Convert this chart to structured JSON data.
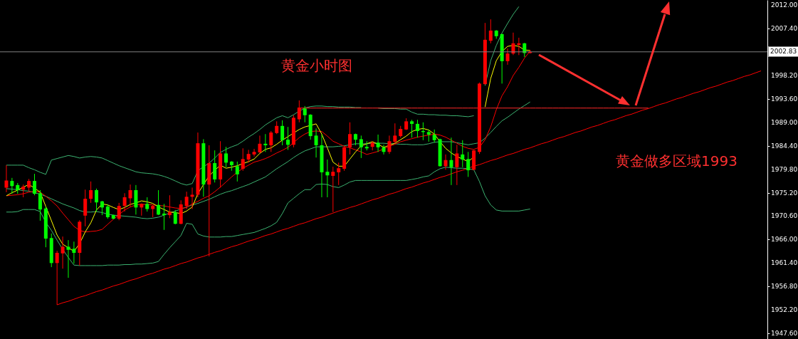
{
  "chart_data": {
    "type": "candlestick",
    "categories": [
      null,
      null,
      null,
      null,
      null,
      null,
      null,
      null,
      null,
      null,
      null,
      null,
      null,
      null,
      null,
      null,
      null,
      null,
      null,
      null,
      null,
      null,
      null,
      null,
      null,
      null,
      null,
      null,
      null,
      null,
      null,
      null,
      null,
      null,
      null,
      null,
      null,
      null,
      null,
      null,
      null,
      null,
      null,
      null,
      null,
      null,
      null,
      null,
      null,
      null,
      null,
      null,
      null,
      null,
      null,
      null,
      null,
      null,
      null,
      null,
      null,
      null,
      null,
      null,
      null,
      null,
      null,
      null,
      null,
      null,
      null,
      null,
      null,
      null,
      null,
      null,
      null,
      null,
      null,
      null,
      null,
      null,
      null,
      null,
      null,
      null,
      null,
      null,
      null,
      null,
      null,
      null,
      null,
      null,
      null,
      null,
      null,
      null,
      null,
      null,
      null,
      null,
      null,
      null,
      null,
      null,
      null,
      null,
      null,
      null,
      null,
      null,
      null,
      null,
      null,
      null,
      null,
      null,
      null,
      null,
      null,
      null,
      null,
      null,
      null,
      null,
      null,
      null,
      null,
      null,
      null,
      null,
      null,
      null,
      null
    ],
    "ohlc": [
      [
        1976.2,
        1980.6,
        1975.3,
        1977.6
      ],
      [
        1977.5,
        1978.1,
        1975.0,
        1976.5
      ],
      [
        1976.7,
        1977.1,
        1975.0,
        1975.7
      ],
      [
        1975.8,
        1976.8,
        1974.3,
        1976.4
      ],
      [
        1976.2,
        1977.9,
        1975.5,
        1977.5
      ],
      [
        1977.5,
        1978.9,
        1974.7,
        1975.0
      ],
      [
        1975.1,
        1975.7,
        1969.7,
        1971.9
      ],
      [
        1972.1,
        1972.5,
        1964.5,
        1966.2
      ],
      [
        1966.3,
        1967.2,
        1960.6,
        1961.4
      ],
      [
        1961.4,
        1963.8,
        1953.2,
        1963.4
      ],
      [
        1963.3,
        1966.6,
        1960.3,
        1964.6
      ],
      [
        1964.6,
        1965.9,
        1958.5,
        1964.0
      ],
      [
        1964.2,
        1965.6,
        1961.3,
        1963.4
      ],
      [
        1963.4,
        1969.8,
        1960.9,
        1969.5
      ],
      [
        1970.7,
        1975.8,
        1968.6,
        1974.0
      ],
      [
        1974.0,
        1977.4,
        1973.2,
        1975.7
      ],
      [
        1975.7,
        1976.0,
        1971.5,
        1973.3
      ],
      [
        1973.5,
        1973.6,
        1970.8,
        1972.3
      ],
      [
        1972.5,
        1972.9,
        1970.1,
        1970.4
      ],
      [
        1970.8,
        1970.9,
        1970.0,
        1970.1
      ],
      [
        1970.1,
        1973.2,
        1969.8,
        1972.6
      ],
      [
        1972.6,
        1975.1,
        1971.5,
        1974.3
      ],
      [
        1974.1,
        1976.8,
        1972.5,
        1975.7
      ],
      [
        1975.7,
        1976.7,
        1970.9,
        1972.3
      ],
      [
        1972.3,
        1973.1,
        1970.7,
        1973.0
      ],
      [
        1973.0,
        1974.3,
        1971.5,
        1972.0
      ],
      [
        1972.0,
        1972.8,
        1970.4,
        1972.6
      ],
      [
        1972.8,
        1975.7,
        1970.8,
        1970.9
      ],
      [
        1971.1,
        1973.0,
        1967.9,
        1970.8
      ],
      [
        1970.8,
        1974.7,
        1970.2,
        1971.4
      ],
      [
        1971.4,
        1971.8,
        1969.0,
        1969.1
      ],
      [
        1969.1,
        1973.7,
        1969.0,
        1972.9
      ],
      [
        1972.6,
        1975.4,
        1972.0,
        1974.4
      ],
      [
        1974.4,
        1976.2,
        1972.0,
        1974.8
      ],
      [
        1974.8,
        1987.0,
        1974.3,
        1984.9
      ],
      [
        1984.9,
        1985.7,
        1974.4,
        1976.8
      ],
      [
        1976.8,
        1984.5,
        1962.7,
        1981.0
      ],
      [
        1981.0,
        1983.5,
        1977.2,
        1977.8
      ],
      [
        1977.8,
        1985.3,
        1976.2,
        1982.9
      ],
      [
        1982.9,
        1984.2,
        1980.2,
        1981.1
      ],
      [
        1981.3,
        1981.4,
        1979.5,
        1980.6
      ],
      [
        1980.4,
        1981.3,
        1977.4,
        1978.8
      ],
      [
        1979.9,
        1983.9,
        1979.5,
        1981.8
      ],
      [
        1981.7,
        1983.6,
        1981.1,
        1982.8
      ],
      [
        1982.7,
        1983.8,
        1982.3,
        1983.2
      ],
      [
        1983.1,
        1986.4,
        1983.0,
        1984.8
      ],
      [
        1984.8,
        1986.7,
        1983.2,
        1984.5
      ],
      [
        1984.5,
        1987.3,
        1983.2,
        1987.0
      ],
      [
        1986.9,
        1989.2,
        1986.7,
        1988.3
      ],
      [
        1988.3,
        1989.4,
        1984.5,
        1985.5
      ],
      [
        1985.6,
        1988.1,
        1983.6,
        1984.6
      ],
      [
        1984.6,
        1990.4,
        1984.1,
        1989.9
      ],
      [
        1989.6,
        1993.3,
        1989.0,
        1991.9
      ],
      [
        1991.7,
        1992.2,
        1989.0,
        1990.4
      ],
      [
        1990.5,
        1990.6,
        1985.6,
        1986.3
      ],
      [
        1986.4,
        1987.8,
        1982.1,
        1984.5
      ],
      [
        1984.5,
        1986.6,
        1974.3,
        1979.2
      ],
      [
        1979.3,
        1981.7,
        1974.3,
        1978.6
      ],
      [
        1978.5,
        1980.3,
        1971.4,
        1979.3
      ],
      [
        1979.2,
        1981.1,
        1976.7,
        1980.0
      ],
      [
        1979.9,
        1984.3,
        1979.5,
        1984.1
      ],
      [
        1984.1,
        1989.0,
        1982.7,
        1986.7
      ],
      [
        1986.7,
        1986.8,
        1984.5,
        1985.6
      ],
      [
        1985.7,
        1986.4,
        1982.0,
        1984.1
      ],
      [
        1984.2,
        1985.3,
        1983.5,
        1983.9
      ],
      [
        1984.2,
        1985.3,
        1983.5,
        1985.0
      ],
      [
        1985.0,
        1986.6,
        1983.2,
        1984.1
      ],
      [
        1984.1,
        1984.6,
        1982.7,
        1983.2
      ],
      [
        1983.2,
        1986.4,
        1982.8,
        1985.3
      ],
      [
        1985.2,
        1988.8,
        1984.8,
        1986.4
      ],
      [
        1986.3,
        1988.3,
        1986.0,
        1987.7
      ],
      [
        1987.6,
        1989.8,
        1987.5,
        1989.2
      ],
      [
        1989.2,
        1989.5,
        1986.0,
        1988.7
      ],
      [
        1988.7,
        1989.5,
        1986.0,
        1987.3
      ],
      [
        1987.3,
        1989.0,
        1985.5,
        1987.1
      ],
      [
        1987.1,
        1987.6,
        1985.2,
        1986.6
      ],
      [
        1986.6,
        1987.6,
        1985.0,
        1985.5
      ],
      [
        1985.7,
        1985.8,
        1980.3,
        1980.4
      ],
      [
        1980.4,
        1982.7,
        1979.7,
        1981.6
      ],
      [
        1981.6,
        1986.0,
        1976.7,
        1980.2
      ],
      [
        1980.2,
        1984.6,
        1976.7,
        1982.9
      ],
      [
        1982.7,
        1985.5,
        1980.2,
        1981.7
      ],
      [
        1981.8,
        1983.2,
        1978.3,
        1979.6
      ],
      [
        1979.7,
        1983.6,
        1979.6,
        1983.5
      ],
      [
        1983.2,
        1996.8,
        1982.8,
        1996.6
      ],
      [
        1996.5,
        2008.5,
        1996.4,
        2005.2
      ],
      [
        2005.0,
        2009.2,
        2004.5,
        2007.0
      ],
      [
        2007.0,
        2007.1,
        2005.4,
        2005.9
      ],
      [
        2006.3,
        2006.4,
        1996.6,
        2001.0
      ],
      [
        2001.0,
        2003.5,
        2000.3,
        2002.5
      ],
      [
        2002.5,
        2006.6,
        2002.2,
        2004.5
      ],
      [
        2004.2,
        2005.6,
        2002.2,
        2004.5
      ],
      [
        2004.5,
        2004.6,
        2001.8,
        2002.6
      ],
      [
        2002.6,
        2003.2,
        2002.5,
        2002.8
      ],
      null,
      null,
      null,
      null,
      null,
      null,
      null,
      null,
      null,
      null,
      null,
      null,
      null,
      null,
      null,
      null,
      null,
      null,
      null,
      null,
      null,
      null,
      null,
      null,
      null,
      null,
      null,
      null,
      null,
      null,
      null,
      null,
      null,
      null,
      null,
      null,
      null,
      null,
      null,
      null,
      null
    ],
    "colors": [
      "#ff0000",
      "#00ff00",
      "#00ff00",
      "#ff0000",
      "#ff0000",
      "#00ff00",
      "#00ff00",
      "#00ff00",
      "#00ff00",
      "#ff0000",
      "#ff0000",
      "#00ff00",
      "#00ff00",
      "#ff0000",
      "#ff0000",
      "#ff0000",
      "#00ff00",
      "#00ff00",
      "#00ff00",
      "#00ff00",
      "#ff0000",
      "#ff0000",
      "#ff0000",
      "#00ff00",
      "#ff0000",
      "#00ff00",
      "#ff0000",
      "#00ff00",
      "#00ff00",
      "#ff0000",
      "#00ff00",
      "#ff0000",
      "#ff0000",
      "#ff0000",
      "#ff0000",
      "#00ff00",
      "#ff0000",
      "#00ff00",
      "#ff0000",
      "#00ff00",
      "#00ff00",
      "#00ff00",
      "#ff0000",
      "#ff0000",
      "#ff0000",
      "#ff0000",
      "#00ff00",
      "#ff0000",
      "#ff0000",
      "#00ff00",
      "#00ff00",
      "#ff0000",
      "#ff0000",
      "#00ff00",
      "#00ff00",
      "#00ff00",
      "#00ff00",
      "#00ff00",
      "#ff0000",
      "#ff0000",
      "#ff0000",
      "#ff0000",
      "#00ff00",
      "#00ff00",
      "#00ff00",
      "#ff0000",
      "#00ff00",
      "#00ff00",
      "#ff0000",
      "#ff0000",
      "#ff0000",
      "#ff0000",
      "#00ff00",
      "#00ff00",
      "#00ff00",
      "#00ff00",
      "#00ff00",
      "#00ff00",
      "#ff0000",
      "#00ff00",
      "#ff0000",
      "#00ff00",
      "#00ff00",
      "#ff0000",
      "#ff0000",
      "#ff0000",
      "#ff0000",
      "#00ff00",
      "#00ff00",
      "#ff0000",
      "#ff0000",
      "#ff0000",
      "#00ff00",
      "#ff0000",
      null,
      null,
      null,
      null,
      null,
      null,
      null,
      null,
      null,
      null,
      null,
      null,
      null,
      null,
      null,
      null,
      null,
      null,
      null,
      null,
      null,
      null,
      null,
      null,
      null,
      null,
      null,
      null,
      null,
      null,
      null,
      null,
      null,
      null,
      null,
      null,
      null,
      null,
      null,
      null,
      null
    ],
    "series": [
      {
        "type": "line",
        "color": "#3cb371",
        "values": [
          1980.6,
          1980.6,
          1980.6,
          1980.6,
          1980.1,
          1979.7,
          1979.2,
          1978.8,
          1981.6,
          1981.9,
          1982.2,
          1982.5,
          1982.3,
          1982.0,
          1982.2,
          1982.3,
          1982.2,
          1982.0,
          1981.5,
          1981.0,
          1980.5,
          1980.1,
          1979.7,
          1979.3,
          1979.1,
          1979.0,
          1978.9,
          1978.7,
          1978.4,
          1978.0,
          1977.5,
          1977.0,
          1976.7,
          1977.0,
          1979.5,
          1980.3,
          1981.0,
          1982.0,
          1983.1,
          1983.7,
          1984.2,
          1984.6,
          1985.3,
          1986.1,
          1986.8,
          1987.6,
          1988.5,
          1989.2,
          1989.9,
          1990.3,
          1989.9,
          1990.5,
          1991.2,
          1991.8,
          1992.1,
          1992.2,
          1992.2,
          1992.1,
          1992.1,
          1992.0,
          1992.0,
          1992.0,
          1991.9,
          1991.9,
          null,
          null,
          1991.8,
          1991.7,
          1991.7,
          1991.7,
          1991.6,
          1991.6,
          1991.0,
          1990.6,
          1990.6,
          1990.5,
          1990.5,
          1990.4,
          1990.4,
          1990.3,
          1990.3,
          1990.2,
          1990.1,
          1990.3,
          null,
          1996.2,
          2001.1,
          2004.1,
          2006.5,
          2008.4,
          2010.2,
          2011.7,
          null,
          null,
          null,
          null,
          null,
          null,
          null,
          null,
          null,
          null,
          null,
          null,
          null,
          null,
          null,
          null,
          null,
          null,
          null,
          null,
          null,
          null,
          null,
          null,
          null,
          null,
          null,
          null,
          null,
          null,
          null,
          null,
          null,
          null,
          null,
          null,
          null,
          null,
          null,
          null,
          null,
          null,
          null
        ]
      },
      {
        "type": "line",
        "color": "#3cb371",
        "values": [
          1976.0,
          1975.9,
          1975.8,
          1975.6,
          1975.5,
          1975.2,
          1974.9,
          1974.5,
          1974.0,
          1973.5,
          1973.0,
          1972.6,
          1972.2,
          1971.7,
          1971.4,
          1971.4,
          1971.5,
          1971.3,
          1971.0,
          1970.8,
          1970.7,
          1970.6,
          1970.5,
          1970.4,
          1970.2,
          1970.1,
          1970.2,
          1970.4,
          1970.8,
          1971.2,
          1971.6,
          1972.0,
          1972.4,
          1972.8,
          1973.1,
          1973.5,
          1973.9,
          1974.4,
          1974.9,
          1975.3,
          1975.6,
          1976.0,
          1976.4,
          1976.8,
          1977.3,
          1977.8,
          1978.3,
          1979.1,
          1979.9,
          1980.6,
          1981.3,
          1982.1,
          1982.8,
          1983.4,
          1983.8,
          1984.2,
          1984.2,
          1984.2,
          1984.2,
          1984.3,
          1984.4,
          1984.6,
          1984.8,
          1984.8,
          1984.8,
          1984.9,
          1984.9,
          1984.9,
          1984.8,
          1984.8,
          1984.7,
          1984.7,
          1984.6,
          1984.6,
          1984.6,
          1984.8,
          1985.1,
          1985.2,
          1985.2,
          1985.2,
          1985.0,
          1984.8,
          1984.6,
          1984.8,
          1985.0,
          1985.9,
          1987.0,
          1988.2,
          1989.3,
          1990.0,
          1990.8,
          1991.6,
          1992.3,
          1993.0,
          null,
          null,
          null,
          null,
          null,
          null,
          null,
          null,
          null,
          null,
          null,
          null,
          null,
          null,
          null,
          null,
          null,
          null,
          null,
          null,
          null,
          null,
          null,
          null,
          null,
          null,
          null,
          null,
          null,
          null,
          null,
          null,
          null,
          null,
          null,
          null,
          null,
          null,
          null,
          null,
          null
        ]
      },
      {
        "type": "line",
        "color": "#3cb371",
        "values": [
          1971.4,
          1971.4,
          1971.5,
          1971.9,
          1971.9,
          1971.9,
          1971.5,
          1969.4,
          1967.8,
          1965.9,
          1964.1,
          1962.5,
          1961.0,
          1960.9,
          1960.9,
          1960.9,
          1960.9,
          1960.9,
          1961.0,
          1961.0,
          1961.0,
          1961.1,
          1961.1,
          1961.2,
          1961.2,
          1961.3,
          1961.4,
          1961.7,
          1963.1,
          1964.4,
          1965.6,
          1966.8,
          1969.2,
          1969.0,
          1967.1,
          1966.7,
          1966.5,
          1966.5,
          1966.5,
          1966.6,
          1966.6,
          1966.8,
          1967.0,
          1967.2,
          1967.4,
          1967.8,
          1968.2,
          1968.7,
          1969.4,
          1971.1,
          1973.2,
          1974.1,
          1975.0,
          1975.8,
          1975.8,
          1976.8,
          1976.9,
          1976.8,
          1976.4,
          1976.2,
          1976.7,
          1977.3,
          1977.6,
          1977.6,
          1977.6,
          1977.6,
          1977.6,
          1977.6,
          1977.6,
          1977.6,
          1977.6,
          1977.6,
          1977.8,
          1978.0,
          1978.3,
          1978.5,
          1979.3,
          1979.9,
          1980.2,
          1980.1,
          1980.0,
          1980.0,
          1979.9,
          1979.7,
          1977.4,
          1974.6,
          1972.8,
          1971.8,
          1971.6,
          1971.6,
          1971.6,
          1971.6,
          1971.8,
          1972.0,
          null,
          null,
          null,
          null,
          null,
          null,
          null,
          null,
          null,
          null,
          null,
          null,
          null,
          null,
          null,
          null,
          null,
          null,
          null,
          null,
          null,
          null,
          null,
          null,
          null,
          null,
          null,
          null,
          null,
          null,
          null,
          null,
          null,
          null,
          null,
          null,
          null,
          null,
          null,
          null,
          null
        ]
      },
      {
        "type": "line",
        "color": "#ff0000",
        "values": [
          1974.6,
          1974.7,
          1974.8,
          1975.0,
          1975.3,
          1975.5,
          1975.3,
          1974.5,
          1973.6,
          1972.6,
          1971.2,
          1969.9,
          1968.6,
          1967.8,
          1967.5,
          1967.6,
          1967.7,
          1968.0,
          1969.0,
          1970.0,
          1970.9,
          1971.8,
          1972.4,
          1972.8,
          1972.9,
          1972.9,
          1972.8,
          1972.7,
          1972.6,
          1972.4,
          1972.2,
          1972.1,
          1972.3,
          1973.0,
          1973.5,
          1974.1,
          1974.6,
          1975.4,
          1976.3,
          1977.3,
          1978.3,
          1979.2,
          1980.0,
          1980.6,
          1981.2,
          1981.5,
          1981.9,
          1982.4,
          1983.0,
          1983.5,
          1984.1,
          1985.0,
          1986.0,
          1986.7,
          1987.2,
          1987.3,
          1987.2,
          1986.3,
          1985.3,
          1984.8,
          1984.3,
          1984.0,
          1983.6,
          1983.2,
          1982.7,
          1983.0,
          1983.3,
          1983.8,
          1984.3,
          1984.7,
          1985.2,
          1985.5,
          1985.8,
          1986.1,
          1986.3,
          1986.5,
          1986.7,
          1986.5,
          1986.1,
          1985.5,
          1984.9,
          1984.3,
          1983.9,
          1983.7,
          1984.1,
          1985.6,
          1988.1,
          1991.5,
          1994.2,
          1996.0,
          1998.2,
          1999.8,
          2001.6,
          2003.0,
          null,
          null,
          null,
          null,
          null,
          null,
          null,
          null,
          null,
          null,
          null,
          null,
          null,
          null,
          null,
          null,
          null,
          null,
          null,
          null,
          null,
          null,
          null,
          null,
          null,
          null,
          null,
          null,
          null,
          null,
          null,
          null,
          null,
          null,
          null,
          null,
          null,
          null,
          null,
          null,
          null
        ]
      },
      {
        "type": "line",
        "color": "#ffff00",
        "values": [
          1974.6,
          1975.2,
          1975.7,
          1976.3,
          1976.8,
          1976.1,
          1975.3,
          1972.5,
          1969.7,
          1966.9,
          1965.1,
          1964.4,
          1963.7,
          1965.2,
          1967.5,
          1969.3,
          1971.8,
          1973.0,
          1972.8,
          1972.3,
          1971.9,
          1972.3,
          1972.9,
          1973.2,
          1973.6,
          1973.4,
          1973.1,
          1972.4,
          1971.9,
          1971.4,
          1971.3,
          1971.1,
          1971.6,
          1972.4,
          1975.0,
          1976.8,
          1978.5,
          1979.6,
          1980.6,
          1980.0,
          1980.2,
          1980.5,
          1980.9,
          1981.3,
          1981.8,
          1982.9,
          1983.7,
          1984.0,
          1984.7,
          1985.5,
          1986.2,
          1986.9,
          1987.6,
          1988.1,
          1988.4,
          1988.7,
          1986.7,
          1984.0,
          1981.2,
          1980.4,
          1980.4,
          1981.8,
          1983.2,
          1984.4,
          1984.8,
          1985.2,
          1984.7,
          1984.1,
          1984.5,
          1984.9,
          1985.6,
          1986.3,
          1987.2,
          1987.6,
          1987.8,
          1987.5,
          1986.7,
          1985.2,
          1983.9,
          1983.0,
          1982.3,
          1981.8,
          1981.3,
          1982.2,
          null,
          1992.0,
          1997.6,
          2001.1,
          2002.9,
          2003.9,
          2004.1,
          2003.9,
          2003.2,
          2003.1,
          null,
          null,
          null,
          null,
          null,
          null,
          null,
          null,
          null,
          null,
          null,
          null,
          null,
          null,
          null,
          null,
          null,
          null,
          null,
          null,
          null,
          null,
          null,
          null,
          null,
          null,
          null,
          null,
          null,
          null,
          null,
          null,
          null,
          null,
          null,
          null,
          null,
          null,
          null,
          null,
          null
        ]
      },
      {
        "type": "line",
        "color": "#ff0000",
        "values": [
          null,
          null,
          null,
          null,
          null,
          null,
          null,
          null,
          null,
          1953.2,
          1953.6,
          1953.9,
          1954.3,
          1954.7,
          1955.0,
          1955.4,
          1955.8,
          1956.1,
          1956.5,
          1956.9,
          1957.2,
          1957.6,
          1958.0,
          1958.3,
          1958.7,
          1959.1,
          1959.4,
          1959.8,
          1960.2,
          1960.5,
          1960.9,
          1961.3,
          1961.6,
          1962.0,
          1962.4,
          1962.7,
          1963.1,
          1963.5,
          1963.8,
          1964.2,
          1964.6,
          1964.9,
          1965.3,
          1965.7,
          1966.0,
          1966.4,
          1966.8,
          1967.1,
          1967.5,
          1967.9,
          1968.2,
          1968.6,
          1969.0,
          1969.3,
          1969.7,
          1970.1,
          1970.4,
          1970.8,
          1971.2,
          1971.6,
          1971.9,
          1972.3,
          1972.6,
          1973.0,
          1973.4,
          1973.8,
          1974.1,
          1974.5,
          1974.9,
          1975.2,
          1975.6,
          1976.0,
          1976.3,
          1976.7,
          1977.1,
          1977.4,
          1977.8,
          1978.2,
          1978.5,
          1978.9,
          1979.3,
          1979.6,
          1980.0,
          1980.4,
          1980.7,
          1981.1,
          1981.5,
          1981.8,
          1982.2,
          1982.6,
          1982.9,
          1983.3,
          1983.7,
          1984.0,
          1984.4,
          1984.8,
          1985.1,
          1985.5,
          1985.9,
          1986.2,
          1986.6,
          1987.0,
          1987.3,
          1987.7,
          1988.1,
          1988.4,
          1988.8,
          1989.2,
          1989.5,
          1989.9,
          1990.3,
          1990.6,
          1991.0,
          1991.4,
          1991.7,
          1992.1,
          1992.5,
          1992.8,
          1993.2,
          1993.6,
          1993.9,
          1994.3,
          1994.7,
          1995.0,
          1995.4,
          1995.8,
          1996.1,
          1996.5,
          1996.9,
          1997.2,
          1997.6,
          1998.0,
          1998.3,
          1998.7,
          1999.1
        ]
      },
      {
        "type": "line",
        "color": "#ff2828",
        "values": [
          null,
          null,
          null,
          null,
          null,
          null,
          null,
          null,
          null,
          null,
          null,
          null,
          null,
          null,
          null,
          null,
          null,
          null,
          null,
          null,
          null,
          null,
          null,
          null,
          null,
          null,
          null,
          null,
          null,
          null,
          null,
          null,
          null,
          null,
          null,
          null,
          null,
          null,
          null,
          null,
          null,
          null,
          null,
          null,
          null,
          null,
          null,
          null,
          null,
          null,
          null,
          null,
          1991.8,
          1991.8,
          1991.8,
          1991.8,
          1991.8,
          1991.8,
          1991.8,
          1991.8,
          1991.8,
          1991.8,
          1991.8,
          1991.8,
          1991.8,
          1991.8,
          1991.8,
          1991.8,
          1991.8,
          1991.8,
          1991.8,
          1991.8,
          1991.8,
          1991.8,
          1991.8,
          1991.8,
          1991.8,
          1991.8,
          1991.8,
          1991.8,
          1991.8,
          1991.8,
          1991.8,
          1991.8,
          1991.8,
          1991.8,
          1991.8,
          1991.8,
          1991.8,
          1991.8,
          1991.8,
          1991.8,
          1991.8,
          1991.8,
          1991.8,
          1991.8,
          1991.8,
          1991.8,
          1991.8,
          1991.8,
          1991.8,
          1991.8,
          1991.8,
          1991.8,
          1991.8,
          1991.8,
          1991.8,
          1991.8,
          1991.8,
          1991.8,
          1991.8,
          1991.8,
          1991.8,
          1991.8,
          1991.8,
          null,
          null,
          null,
          null,
          null,
          null,
          null,
          null,
          null,
          null,
          null,
          null,
          null,
          null,
          null,
          null,
          null,
          null,
          null,
          null
        ]
      }
    ],
    "ylim": [
      1946.5,
      2013.0
    ],
    "yticks": [
      {
        "value": 2012,
        "label": "2012.00"
      },
      {
        "value": 2007.4,
        "label": "2007.40"
      },
      {
        "value": 1998.2,
        "label": "1998.20"
      },
      {
        "value": 1993.6,
        "label": "1993.60"
      },
      {
        "value": 1989,
        "label": "1989.00"
      },
      {
        "value": 1984.4,
        "label": "1984.40"
      },
      {
        "value": 1979.8,
        "label": "1979.80"
      },
      {
        "value": 1975.2,
        "label": "1975.20"
      },
      {
        "value": 1970.6,
        "label": "1970.60"
      },
      {
        "value": 1966,
        "label": "1966.00"
      },
      {
        "value": 1961.4,
        "label": "1961.40"
      },
      {
        "value": 1956.8,
        "label": "1956.80"
      },
      {
        "value": 1952.2,
        "label": "1952.20"
      },
      {
        "value": 1947.6,
        "label": "1947.60"
      }
    ],
    "ref_lines": [
      {
        "axis": "y",
        "value": 2002.83,
        "label": "2002.83",
        "color": "#808080"
      }
    ],
    "annotations": [
      "黄金小时图",
      "黄金做多区域1993"
    ],
    "tick_labels": "y"
  }
}
